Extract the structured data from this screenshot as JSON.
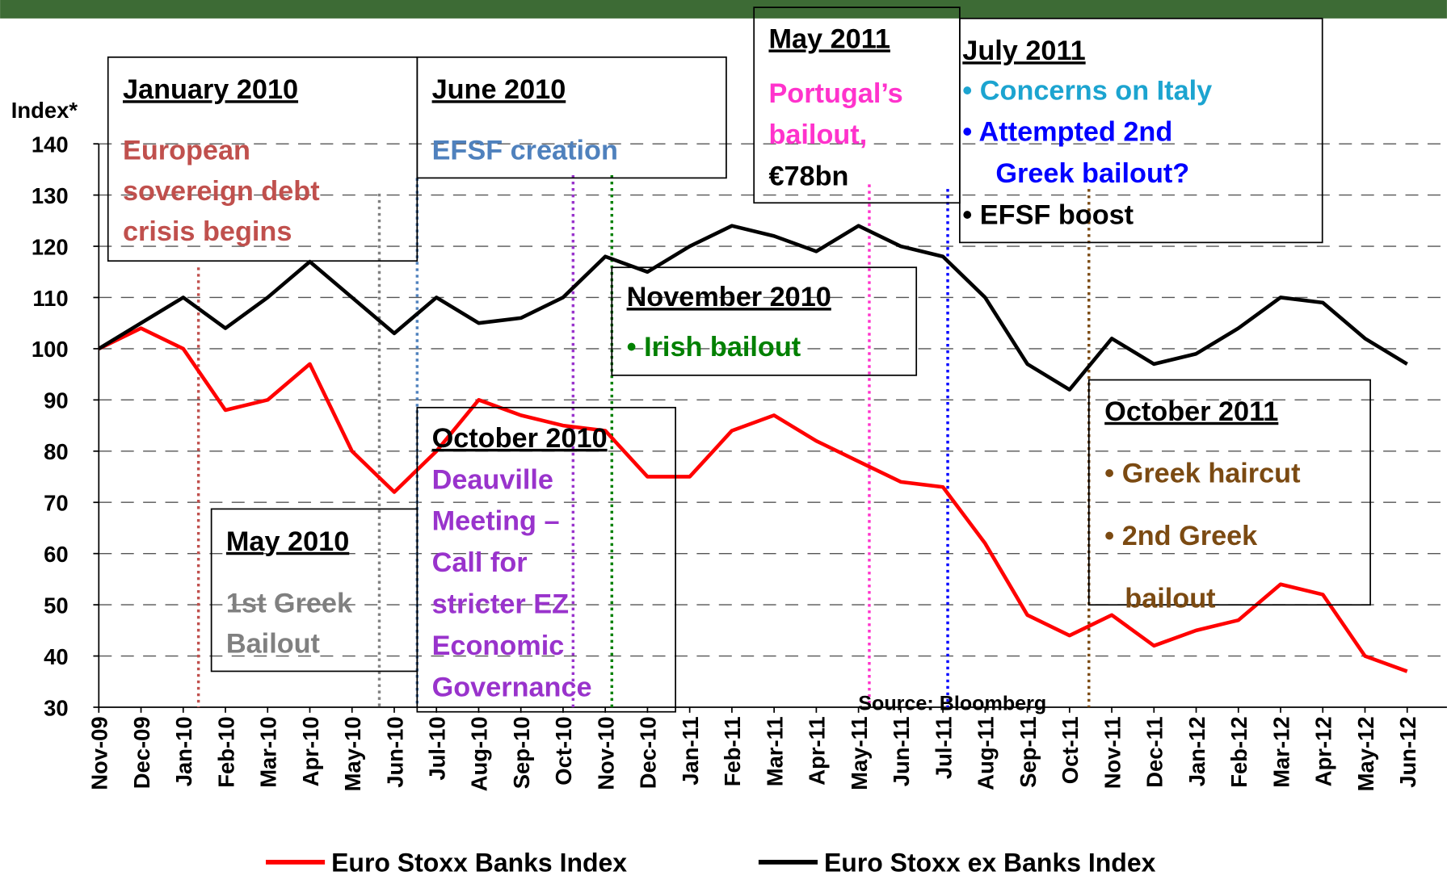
{
  "chart_data": {
    "type": "line",
    "y_label": "Index*",
    "source": "Source: Bloomberg",
    "categories": [
      "Nov-09",
      "Dec-09",
      "Jan-10",
      "Feb-10",
      "Mar-10",
      "Apr-10",
      "May-10",
      "Jun-10",
      "Jul-10",
      "Aug-10",
      "Sep-10",
      "Oct-10",
      "Nov-10",
      "Dec-10",
      "Jan-11",
      "Feb-11",
      "Mar-11",
      "Apr-11",
      "May-11",
      "Jun-11",
      "Jul-11",
      "Aug-11",
      "Sep-11",
      "Oct-11",
      "Nov-11",
      "Dec-11",
      "Jan-12",
      "Feb-12",
      "Mar-12",
      "Apr-12",
      "May-12",
      "Jun-12"
    ],
    "series": [
      {
        "name": "Euro Stoxx Banks Index",
        "color": "#ff0000",
        "values": [
          100,
          104,
          100,
          88,
          90,
          97,
          80,
          72,
          80,
          90,
          87,
          85,
          84,
          75,
          75,
          84,
          87,
          82,
          78,
          74,
          73,
          62,
          48,
          44,
          48,
          42,
          45,
          47,
          54,
          52,
          40,
          37
        ]
      },
      {
        "name": "Euro Stoxx ex Banks Index",
        "color": "#000000",
        "values": [
          100,
          105,
          110,
          104,
          110,
          117,
          110,
          103,
          110,
          105,
          106,
          110,
          118,
          115,
          120,
          124,
          122,
          119,
          124,
          120,
          118,
          110,
          97,
          92,
          102,
          97,
          99,
          104,
          110,
          109,
          102,
          97
        ]
      }
    ],
    "ylim": [
      30,
      140
    ],
    "yticks": [
      30,
      40,
      50,
      60,
      70,
      80,
      90,
      100,
      110,
      120,
      130,
      140
    ],
    "grid": true,
    "annotations": [
      {
        "title": "January 2010",
        "lines": [
          {
            "text": "European",
            "color": "#c0504d"
          },
          {
            "text": "sovereign debt",
            "color": "#c0504d"
          },
          {
            "text": "crisis begins",
            "color": "#c0504d"
          }
        ]
      },
      {
        "title": "June 2010",
        "lines": [
          {
            "text": "EFSF creation",
            "color": "#4f81bd"
          }
        ]
      },
      {
        "title": "May 2011",
        "lines": [
          {
            "text": "Portugal’s",
            "color": "#ff33cc"
          },
          {
            "text": "bailout,",
            "color": "#ff33cc"
          },
          {
            "text": "€78bn",
            "color": "#000000"
          }
        ]
      },
      {
        "title": "July 2011",
        "lines": [
          {
            "text": "• Concerns on Italy",
            "color": "#1ca4d0"
          },
          {
            "text": "• Attempted 2nd",
            "color": "#0000ff"
          },
          {
            "text": "Greek bailout?",
            "color": "#0000ff"
          },
          {
            "text": "• EFSF boost",
            "color": "#000000"
          }
        ]
      },
      {
        "title": "November 2010",
        "lines": [
          {
            "text": "• Irish bailout",
            "color": "#008000"
          }
        ]
      },
      {
        "title": "October 2010",
        "lines": [
          {
            "text": "Deauville",
            "color": "#9933cc"
          },
          {
            "text": "Meeting –",
            "color": "#9933cc"
          },
          {
            "text": "Call for",
            "color": "#9933cc"
          },
          {
            "text": "stricter EZ",
            "color": "#9933cc"
          },
          {
            "text": "Economic",
            "color": "#9933cc"
          },
          {
            "text": "Governance",
            "color": "#9933cc"
          }
        ]
      },
      {
        "title": "May 2010",
        "lines": [
          {
            "text": "1st Greek",
            "color": "#808080"
          },
          {
            "text": "Bailout",
            "color": "#808080"
          }
        ]
      },
      {
        "title": "October 2011",
        "lines": [
          {
            "text": "• Greek haircut",
            "color": "#7b4a12"
          },
          {
            "text": "• 2nd Greek",
            "color": "#7b4a12"
          },
          {
            "text": "bailout",
            "color": "#7b4a12"
          }
        ]
      }
    ]
  }
}
